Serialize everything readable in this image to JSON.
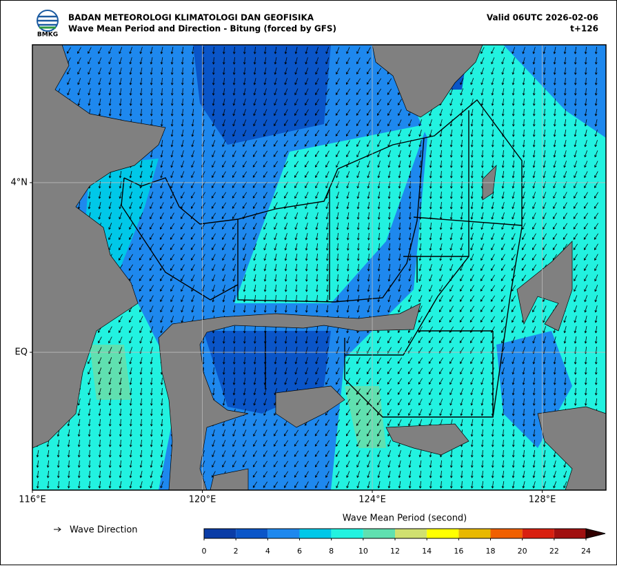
{
  "header": {
    "logo": "BMKG",
    "agency": "BADAN METEOROLOGI KLIMATOLOGI DAN GEOFISIKA",
    "product": "Wave Mean Period and Direction - Bitung (forced by GFS)",
    "valid": "Valid 06UTC 2026-02-06",
    "lead": "t+126"
  },
  "map": {
    "xlim": [
      116,
      129.5
    ],
    "ylim": [
      -3.25,
      7.25
    ],
    "xticks": [
      {
        "value": 116,
        "label": "116°E"
      },
      {
        "value": 120,
        "label": "120°E"
      },
      {
        "value": 124,
        "label": "124°E"
      },
      {
        "value": 128,
        "label": "128°E"
      }
    ],
    "yticks": [
      {
        "value": 0,
        "label": "EQ"
      },
      {
        "value": 4,
        "label": "4°N"
      }
    ],
    "grid": true
  },
  "legend": {
    "label": "Wave Direction"
  },
  "colorbar": {
    "title": "Wave Mean Period (second)",
    "ticks": [
      0,
      2,
      4,
      6,
      8,
      10,
      12,
      14,
      16,
      18,
      20,
      22,
      24
    ],
    "colors": [
      "#0a3ca6",
      "#0a55c8",
      "#1e88ee",
      "#00c8e8",
      "#22f2e0",
      "#60e0b0",
      "#d0e070",
      "#ffff00",
      "#e8b800",
      "#f06000",
      "#d82010",
      "#a01010"
    ],
    "extend_color": "#300000"
  }
}
